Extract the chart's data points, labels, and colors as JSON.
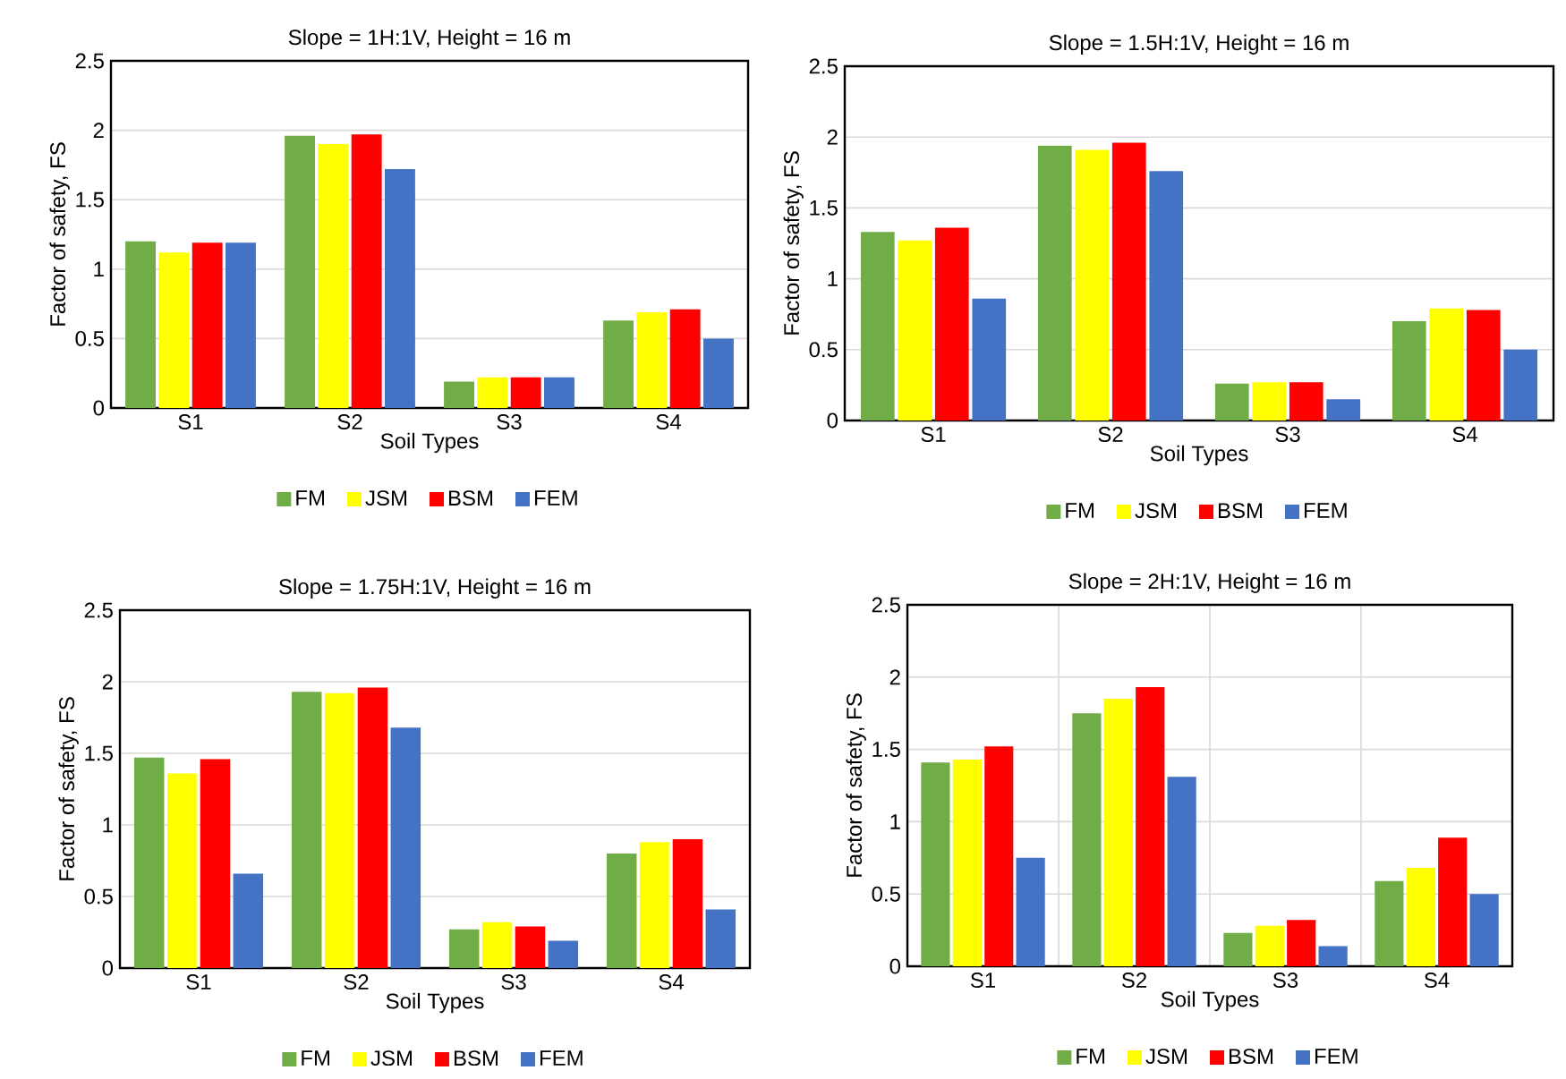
{
  "chart_data": [
    {
      "type": "bar",
      "title": "Slope = 1H:1V, Height = 16 m",
      "xlabel": "Soil Types",
      "ylabel": "Factor of safety, FS",
      "categories": [
        "S1",
        "S2",
        "S3",
        "S4"
      ],
      "ylim": [
        0,
        2.5
      ],
      "yticks": [
        0,
        0.5,
        1,
        1.5,
        2,
        2.5
      ],
      "grid": "y",
      "legend": "bottom",
      "series": [
        {
          "name": "FM",
          "color": "#70ad47",
          "values": [
            1.2,
            1.96,
            0.19,
            0.63
          ]
        },
        {
          "name": "JSM",
          "color": "#ffff00",
          "values": [
            1.12,
            1.9,
            0.22,
            0.69
          ]
        },
        {
          "name": "BSM",
          "color": "#ff0000",
          "values": [
            1.19,
            1.97,
            0.22,
            0.71
          ]
        },
        {
          "name": "FEM",
          "color": "#4472c4",
          "values": [
            1.19,
            1.72,
            0.22,
            0.5
          ]
        }
      ]
    },
    {
      "type": "bar",
      "title": "Slope = 1.5H:1V, Height = 16 m",
      "xlabel": "Soil Types",
      "ylabel": "Factor of safety, FS",
      "categories": [
        "S1",
        "S2",
        "S3",
        "S4"
      ],
      "ylim": [
        0,
        2.5
      ],
      "yticks": [
        0,
        0.5,
        1,
        1.5,
        2,
        2.5
      ],
      "grid": "y",
      "legend": "bottom",
      "series": [
        {
          "name": "FM",
          "color": "#70ad47",
          "values": [
            1.33,
            1.94,
            0.26,
            0.7
          ]
        },
        {
          "name": "JSM",
          "color": "#ffff00",
          "values": [
            1.27,
            1.91,
            0.27,
            0.79
          ]
        },
        {
          "name": "BSM",
          "color": "#ff0000",
          "values": [
            1.36,
            1.96,
            0.27,
            0.78
          ]
        },
        {
          "name": "FEM",
          "color": "#4472c4",
          "values": [
            0.86,
            1.76,
            0.15,
            0.5
          ]
        }
      ]
    },
    {
      "type": "bar",
      "title": "Slope = 1.75H:1V, Height = 16 m",
      "xlabel": "Soil Types",
      "ylabel": "Factor of safety, FS",
      "categories": [
        "S1",
        "S2",
        "S3",
        "S4"
      ],
      "ylim": [
        0,
        2.5
      ],
      "yticks": [
        0,
        0.5,
        1,
        1.5,
        2,
        2.5
      ],
      "grid": "y",
      "legend": "bottom",
      "series": [
        {
          "name": "FM",
          "color": "#70ad47",
          "values": [
            1.47,
            1.93,
            0.27,
            0.8
          ]
        },
        {
          "name": "JSM",
          "color": "#ffff00",
          "values": [
            1.36,
            1.92,
            0.32,
            0.88
          ]
        },
        {
          "name": "BSM",
          "color": "#ff0000",
          "values": [
            1.46,
            1.96,
            0.29,
            0.9
          ]
        },
        {
          "name": "FEM",
          "color": "#4472c4",
          "values": [
            0.66,
            1.68,
            0.19,
            0.41
          ]
        }
      ]
    },
    {
      "type": "bar",
      "title": "Slope = 2H:1V, Height = 16 m",
      "xlabel": "Soil Types",
      "ylabel": "Factor of safety, FS",
      "categories": [
        "S1",
        "S2",
        "S3",
        "S4"
      ],
      "ylim": [
        0,
        2.5
      ],
      "yticks": [
        0,
        0.5,
        1,
        1.5,
        2,
        2.5
      ],
      "grid": true,
      "legend": "bottom",
      "series": [
        {
          "name": "FM",
          "color": "#70ad47",
          "values": [
            1.41,
            1.75,
            0.23,
            0.59
          ]
        },
        {
          "name": "JSM",
          "color": "#ffff00",
          "values": [
            1.43,
            1.85,
            0.28,
            0.68
          ]
        },
        {
          "name": "BSM",
          "color": "#ff0000",
          "values": [
            1.52,
            1.93,
            0.32,
            0.89
          ]
        },
        {
          "name": "FEM",
          "color": "#4472c4",
          "values": [
            0.75,
            1.31,
            0.14,
            0.5
          ]
        }
      ]
    }
  ]
}
